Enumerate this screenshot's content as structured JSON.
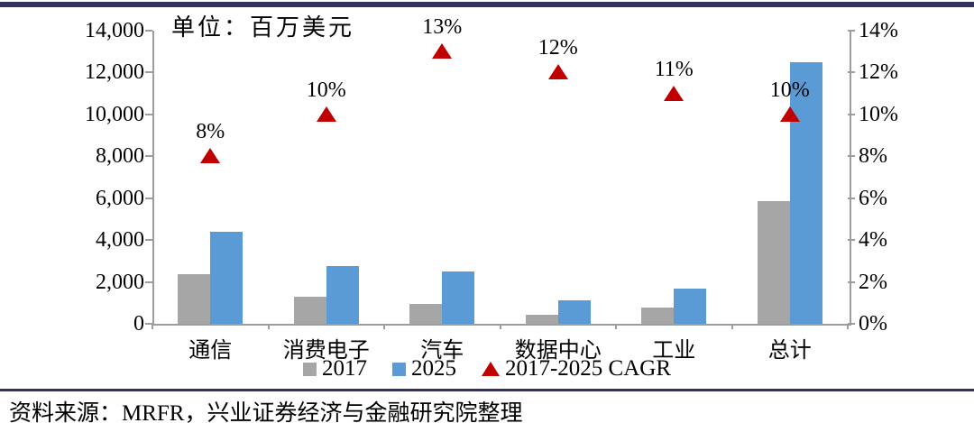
{
  "chart": {
    "unit_label": "单位：百万美元",
    "colors": {
      "axis": "#9d9d9d",
      "rule": "#31325e",
      "bar_2017": "#A6A6A6",
      "bar_2025": "#5B9BD5",
      "cagr_marker": "#C00000",
      "text": "#000000"
    },
    "left_axis": {
      "ticks": [
        "14,000",
        "12,000",
        "10,000",
        "8,000",
        "6,000",
        "4,000",
        "2,000",
        "0"
      ]
    },
    "right_axis": {
      "ticks": [
        "14%",
        "12%",
        "10%",
        "8%",
        "6%",
        "4%",
        "2%",
        "0%"
      ]
    }
  },
  "chart_data": {
    "type": "bar",
    "title": "单位：百万美元",
    "categories": [
      "通信",
      "消费电子",
      "汽车",
      "数据中心",
      "工业",
      "总计"
    ],
    "series": [
      {
        "name": "2017",
        "type": "bar",
        "axis": "left",
        "color": "#A6A6A6",
        "values": [
          2350,
          1300,
          950,
          450,
          780,
          5850
        ]
      },
      {
        "name": "2025",
        "type": "bar",
        "axis": "left",
        "color": "#5B9BD5",
        "values": [
          4400,
          2750,
          2520,
          1100,
          1700,
          12500
        ]
      },
      {
        "name": "2017-2025 CAGR",
        "type": "scatter",
        "marker": "triangle",
        "axis": "right",
        "color": "#C00000",
        "values": [
          8,
          10,
          13,
          12,
          11,
          10
        ],
        "labels": [
          "8%",
          "10%",
          "13%",
          "12%",
          "11%",
          "10%"
        ]
      }
    ],
    "xlabel": "",
    "ylabel_left": "百万美元",
    "left_ylim": [
      0,
      14000
    ],
    "right_ylim": [
      0,
      14
    ],
    "grid": false,
    "legend_position": "bottom"
  },
  "footer": {
    "source": "资料来源：MRFR，兴业证券经济与金融研究院整理"
  }
}
